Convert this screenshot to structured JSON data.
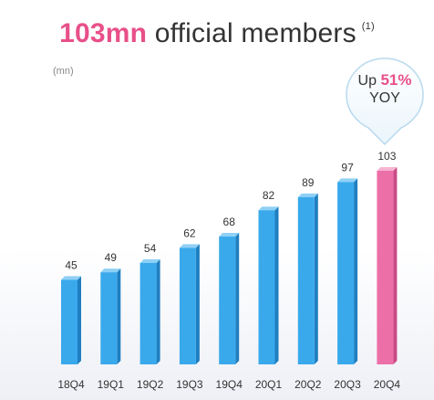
{
  "header": {
    "title_highlight": "103mn",
    "title_rest": " official members",
    "footnote": "(1)"
  },
  "unit_label": "(mn)",
  "callout": {
    "prefix": "Up",
    "value": "51%",
    "suffix": "YOY"
  },
  "colors": {
    "bar_blue": "#39a9ec",
    "bar_blue_side": "#1f7fc0",
    "bar_blue_top": "#8fd0f5",
    "bar_pink": "#ec6fa8",
    "bar_pink_side": "#c94a86",
    "bar_pink_top": "#f6b4d2",
    "accent": "#e8508a"
  },
  "chart_data": {
    "type": "bar",
    "categories": [
      "18Q4",
      "19Q1",
      "19Q2",
      "19Q3",
      "19Q4",
      "20Q1",
      "20Q2",
      "20Q3",
      "20Q4"
    ],
    "values": [
      45,
      49,
      54,
      62,
      68,
      82,
      89,
      97,
      103
    ],
    "highlight_index": 8,
    "ylabel": "(mn)",
    "ylim": [
      0,
      103
    ],
    "grid": false,
    "legend": "none"
  }
}
